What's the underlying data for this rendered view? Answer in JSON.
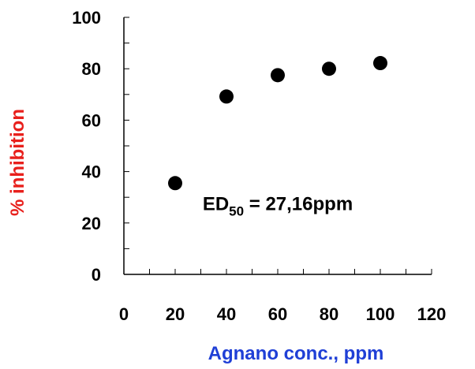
{
  "chart_data": {
    "type": "scatter",
    "title": "",
    "xlabel": "Agnano conc., ppm",
    "ylabel": "% inhibition",
    "xlim": [
      0,
      120
    ],
    "ylim": [
      0,
      100
    ],
    "x_ticks": [
      0,
      20,
      40,
      60,
      80,
      100,
      120
    ],
    "y_ticks": [
      0,
      20,
      40,
      60,
      80,
      100
    ],
    "x_minor_step": 10,
    "y_minor_step": 10,
    "grid": false,
    "legend": "none",
    "points": [
      {
        "x": 20,
        "y": 35.5
      },
      {
        "x": 40,
        "y": 69.2
      },
      {
        "x": 60,
        "y": 77.5
      },
      {
        "x": 80,
        "y": 80.0
      },
      {
        "x": 100,
        "y": 82.2
      }
    ],
    "annotation": {
      "prefix": "ED",
      "subscript": "50",
      "suffix": " = 27,16ppm",
      "x": 60,
      "y": 25
    },
    "colors": {
      "xlabel": "#1f3fd6",
      "ylabel": "#e8201c",
      "points": "#000000",
      "axes": "#000000"
    }
  }
}
